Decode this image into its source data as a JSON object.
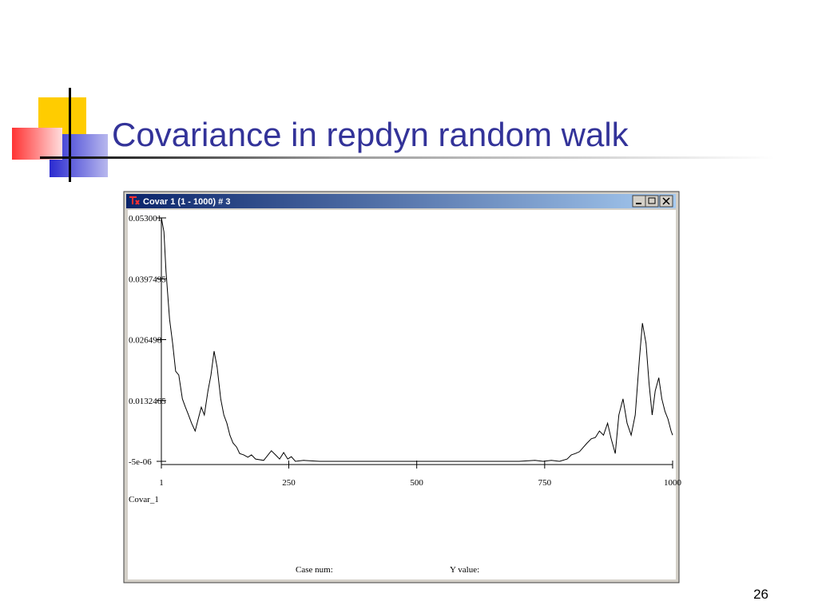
{
  "slide": {
    "title": "Covariance in repdyn random walk",
    "page_number": "26"
  },
  "window": {
    "title": "Covar 1 (1 - 1000) # 3",
    "status_case": "Case num:",
    "status_value": "Y value:"
  },
  "chart_data": {
    "type": "line",
    "series_label": "Covar_1",
    "color": "#000000",
    "x": [
      1,
      6,
      10,
      17,
      23,
      29,
      35,
      42,
      48,
      54,
      60,
      67,
      73,
      79,
      85,
      92,
      98,
      104,
      110,
      117,
      123,
      129,
      135,
      141,
      148,
      154,
      162,
      170,
      177,
      185,
      201,
      216,
      224,
      232,
      240,
      248,
      255,
      263,
      279,
      310,
      341,
      388,
      466,
      544,
      622,
      700,
      731,
      747,
      763,
      779,
      794,
      802,
      810,
      818,
      826,
      833,
      841,
      849,
      857,
      865,
      873,
      880,
      888,
      895,
      903,
      911,
      919,
      927,
      935,
      941,
      948,
      954,
      960,
      966,
      973,
      979,
      985,
      991,
      997,
      1000
    ],
    "values": [
      0.053,
      0.05,
      0.0414,
      0.0309,
      0.0257,
      0.0196,
      0.0188,
      0.0136,
      0.0118,
      0.0101,
      0.0083,
      0.0066,
      0.0092,
      0.0118,
      0.0101,
      0.0153,
      0.0188,
      0.024,
      0.0205,
      0.0136,
      0.0101,
      0.0083,
      0.0057,
      0.004,
      0.0031,
      0.0017,
      0.0014,
      0.0009,
      0.0014,
      0.0005,
      0.0002,
      0.0023,
      0.0014,
      0.0005,
      0.0019,
      0.0005,
      0.001,
      0,
      0.0002,
      0,
      0,
      0,
      0,
      0,
      0,
      0,
      0.0002,
      0,
      0.0002,
      0,
      0.0005,
      0.0014,
      0.0017,
      0.0021,
      0.0031,
      0.004,
      0.0049,
      0.0052,
      0.0066,
      0.0057,
      0.0083,
      0.0049,
      0.0017,
      0.0101,
      0.0136,
      0.0083,
      0.0057,
      0.0101,
      0.0222,
      0.0301,
      0.0257,
      0.017,
      0.0101,
      0.0153,
      0.0182,
      0.0136,
      0.0109,
      0.0092,
      0.0066,
      0.0057
    ],
    "xlim": [
      1,
      1000
    ],
    "xticks": [
      1,
      250,
      500,
      750,
      1000
    ],
    "ylim": [
      -5e-06,
      0.053001
    ],
    "yticks": [
      {
        "value": -5e-06,
        "label": "-5e-06"
      },
      0.0132465,
      0.026498,
      0.0397495,
      0.053001
    ]
  }
}
